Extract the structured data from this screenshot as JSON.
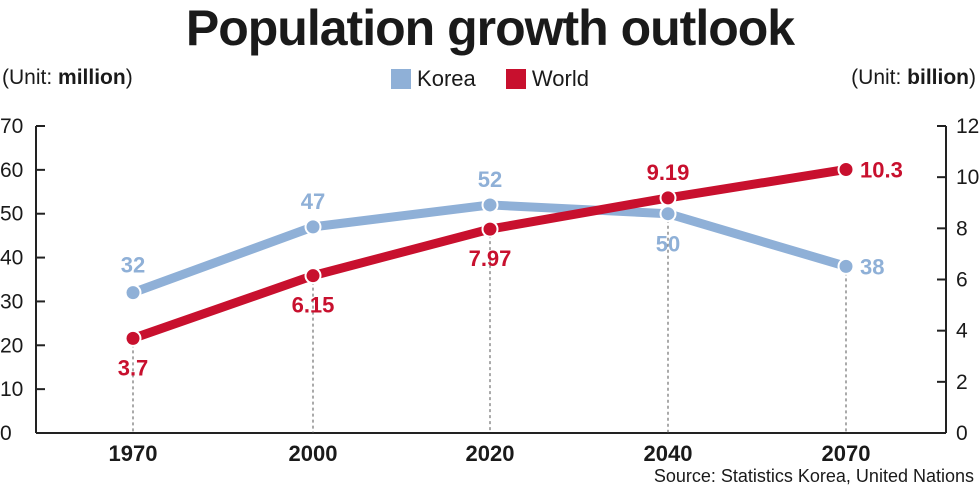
{
  "title": "Population growth outlook",
  "unit_left": {
    "prefix": "(Unit: ",
    "unit": "million",
    "suffix": ")"
  },
  "unit_right": {
    "prefix": "(Unit: ",
    "unit": "billion",
    "suffix": ")"
  },
  "source": "Source: Statistics Korea, United Nations",
  "colors": {
    "korea": "#8fb0d7",
    "world": "#c8102e",
    "axis": "#222222"
  },
  "chart_data": {
    "type": "line",
    "title": "Population growth outlook",
    "categories": [
      "1970",
      "2000",
      "2020",
      "2040",
      "2070"
    ],
    "series": [
      {
        "name": "Korea",
        "axis": "left",
        "values": [
          32,
          47,
          52,
          50,
          38
        ],
        "labels": [
          "32",
          "47",
          "52",
          "50",
          "38"
        ]
      },
      {
        "name": "World",
        "axis": "right",
        "values": [
          3.7,
          6.15,
          7.97,
          9.19,
          10.3
        ],
        "labels": [
          "3.7",
          "6.15",
          "7.97",
          "9.19",
          "10.3"
        ]
      }
    ],
    "left_axis": {
      "label": "million",
      "min": 0,
      "max": 70,
      "ticks": [
        "0",
        "10",
        "20",
        "30",
        "40",
        "50",
        "60",
        "70"
      ]
    },
    "right_axis": {
      "label": "billion",
      "min": 0,
      "max": 12,
      "ticks": [
        "0",
        "2",
        "4",
        "6",
        "8",
        "10",
        "12"
      ]
    },
    "legend": "top-center"
  }
}
